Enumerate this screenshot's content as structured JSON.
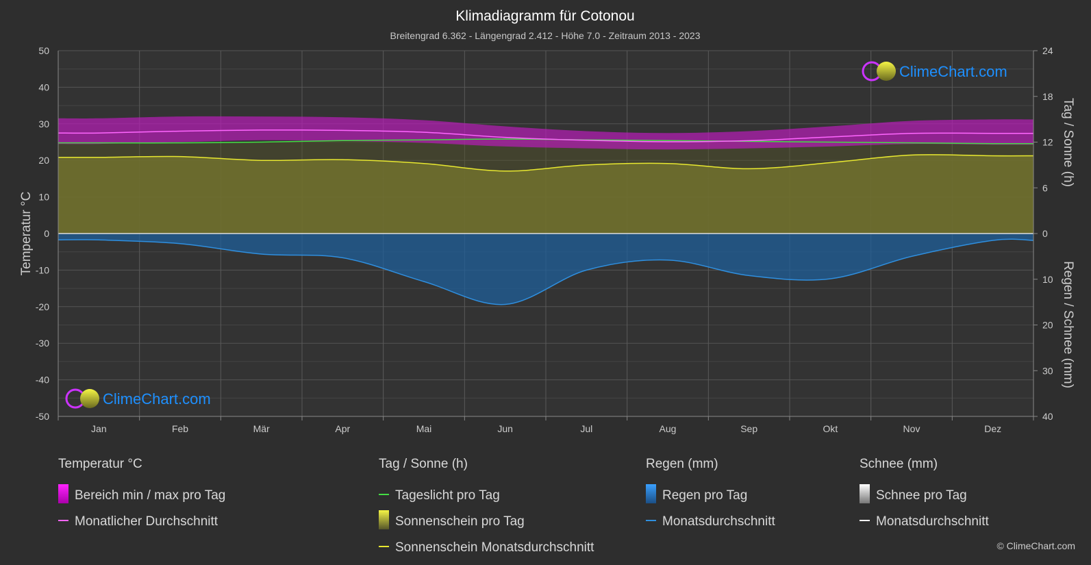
{
  "chart_data": {
    "type": "area",
    "title": "Klimadiagramm für Cotonou",
    "subtitle": "Breitengrad 6.362 - Längengrad 2.412 - Höhe 7.0 - Zeitraum 2013 - 2023",
    "categories": [
      "Jan",
      "Feb",
      "Mär",
      "Apr",
      "Mai",
      "Jun",
      "Jul",
      "Aug",
      "Sep",
      "Okt",
      "Nov",
      "Dez"
    ],
    "y_left": {
      "label": "Temperatur °C",
      "range": [
        -50,
        50
      ],
      "ticks": [
        "50",
        "40",
        "30",
        "20",
        "10",
        "0",
        "-10",
        "-20",
        "-30",
        "-40",
        "-50"
      ]
    },
    "y_right_top": {
      "label": "Tag / Sonne (h)",
      "range": [
        0,
        24
      ],
      "ticks": [
        "24",
        "18",
        "12",
        "6",
        "0"
      ]
    },
    "y_right_bottom": {
      "label": "Regen / Schnee (mm)",
      "range": [
        0,
        40
      ],
      "ticks": [
        "0",
        "10",
        "20",
        "30",
        "40"
      ]
    },
    "series": [
      {
        "name": "Monatlicher Durchschnitt",
        "axis": "temperature",
        "color": "#ff66ff",
        "values": [
          27.5,
          28.0,
          28.3,
          28.2,
          27.7,
          26.3,
          25.5,
          25.1,
          25.4,
          26.4,
          27.4,
          27.4
        ]
      },
      {
        "name": "Bereich min / max pro Tag (max)",
        "axis": "temperature",
        "color": "#e000e0",
        "values": [
          31.5,
          32.0,
          32.0,
          31.8,
          31.0,
          29.3,
          28.0,
          27.5,
          28.0,
          29.3,
          30.8,
          31.2
        ]
      },
      {
        "name": "Bereich min / max pro Tag (min)",
        "axis": "temperature",
        "color": "#e000e0",
        "values": [
          24.5,
          25.0,
          25.5,
          25.3,
          24.8,
          23.8,
          23.3,
          23.0,
          23.3,
          23.8,
          24.5,
          24.3
        ]
      },
      {
        "name": "Tageslicht pro Tag",
        "axis": "sun_hours",
        "color": "#44dd44",
        "values": [
          11.9,
          11.9,
          12.0,
          12.2,
          12.3,
          12.4,
          12.3,
          12.2,
          12.1,
          12.0,
          11.9,
          11.8
        ]
      },
      {
        "name": "Sonnenschein Monatsdurchschnitt",
        "axis": "sun_hours",
        "color": "#e8e830",
        "values": [
          10.0,
          10.1,
          9.6,
          9.7,
          9.2,
          8.2,
          9.0,
          9.2,
          8.5,
          9.3,
          10.3,
          10.2
        ]
      },
      {
        "name": "Monatsdurchschnitt (Regen)",
        "axis": "precipitation",
        "color": "#2f8fdf",
        "values": [
          1.4,
          2.2,
          4.5,
          5.3,
          10.5,
          15.5,
          8.0,
          5.8,
          9.2,
          9.9,
          5.0,
          1.5
        ]
      },
      {
        "name": "Monatsdurchschnitt (Schnee)",
        "axis": "precipitation",
        "color": "#ffffff",
        "values": [
          0,
          0,
          0,
          0,
          0,
          0,
          0,
          0,
          0,
          0,
          0,
          0
        ]
      }
    ],
    "grid": true,
    "legend_placement": "bottom",
    "legend": {
      "groups": [
        {
          "heading": "Temperatur °C",
          "items": [
            {
              "label": "Bereich min / max pro Tag",
              "swatch": "box",
              "color": "#e000e0"
            },
            {
              "label": "Monatlicher Durchschnitt",
              "swatch": "line",
              "color": "#ff66ff"
            }
          ]
        },
        {
          "heading": "Tag / Sonne (h)",
          "items": [
            {
              "label": "Tageslicht pro Tag",
              "swatch": "line",
              "color": "#44dd44"
            },
            {
              "label": "Sonnenschein pro Tag",
              "swatch": "box",
              "color": "#c8c83a"
            },
            {
              "label": "Sonnenschein Monatsdurchschnitt",
              "swatch": "line",
              "color": "#e8e830"
            }
          ]
        },
        {
          "heading": "Regen (mm)",
          "items": [
            {
              "label": "Regen pro Tag",
              "swatch": "box",
              "color": "#2f7fd0"
            },
            {
              "label": "Monatsdurchschnitt",
              "swatch": "line",
              "color": "#2f8fdf"
            }
          ]
        },
        {
          "heading": "Schnee (mm)",
          "items": [
            {
              "label": "Schnee pro Tag",
              "swatch": "box",
              "color": "#dddddd"
            },
            {
              "label": "Monatsdurchschnitt",
              "swatch": "line",
              "color": "#ffffff"
            }
          ]
        }
      ]
    }
  },
  "brand": {
    "name": "ClimeChart.com",
    "copyright": "© ClimeChart.com"
  }
}
